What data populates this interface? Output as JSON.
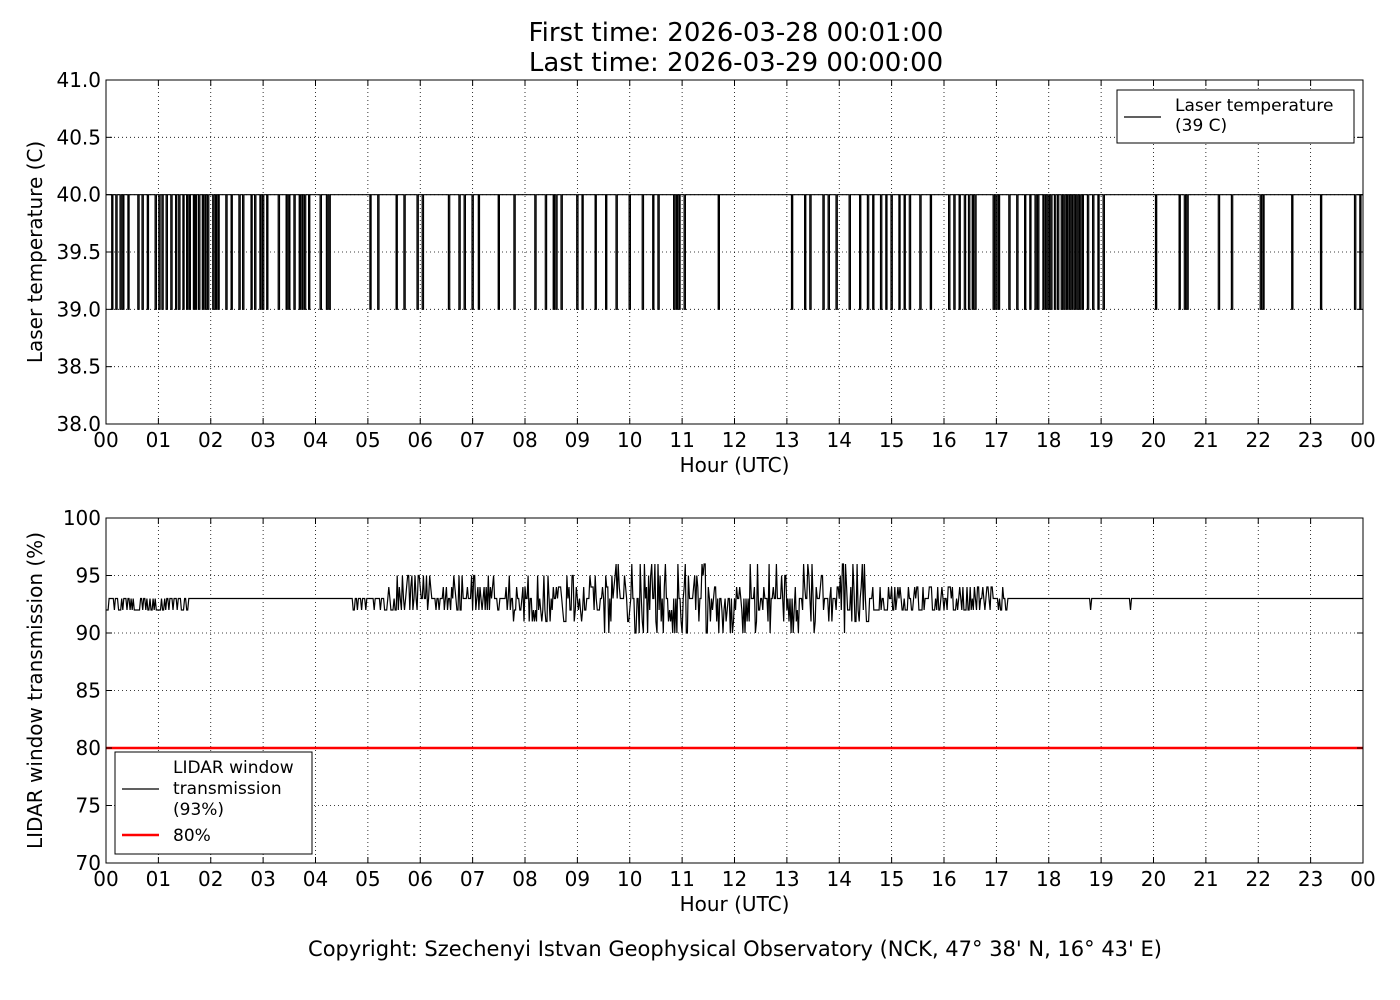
{
  "figure": {
    "title_line1": "First time: 2026-03-28 00:01:00",
    "title_line2": "Last time: 2026-03-29 00:00:00",
    "copyright": "Copyright: Szechenyi Istvan Geophysical Observatory (NCK, 47° 38' N, 16° 43' E)"
  },
  "chart_data": [
    {
      "type": "line",
      "xlabel": "Hour (UTC)",
      "ylabel": "Laser temperature (C)",
      "xlim": [
        0,
        24
      ],
      "ylim": [
        38.0,
        41.0
      ],
      "x_tick_labels": [
        "00",
        "01",
        "02",
        "03",
        "04",
        "05",
        "06",
        "07",
        "08",
        "09",
        "10",
        "11",
        "12",
        "13",
        "14",
        "15",
        "16",
        "17",
        "18",
        "19",
        "20",
        "21",
        "22",
        "23",
        "00"
      ],
      "y_tick_labels": [
        "38.0",
        "38.5",
        "39.0",
        "39.5",
        "40.0",
        "40.5",
        "41.0"
      ],
      "y_ticks": [
        38.0,
        38.5,
        39.0,
        39.5,
        40.0,
        40.5,
        41.0
      ],
      "grid": true,
      "legend_position": "top-right",
      "series": [
        {
          "name": "Laser temperature\n(39 C)",
          "color": "#000000",
          "baseline": 40.0,
          "dips_to": 39.0,
          "dip_hours": [
            0.12,
            0.2,
            0.28,
            0.33,
            0.43,
            0.62,
            0.7,
            0.8,
            0.95,
            1.02,
            1.08,
            1.16,
            1.25,
            1.34,
            1.4,
            1.48,
            1.55,
            1.6,
            1.68,
            1.72,
            1.78,
            1.85,
            1.9,
            1.95,
            2.05,
            2.1,
            2.15,
            2.3,
            2.4,
            2.55,
            2.62,
            2.78,
            2.85,
            2.95,
            3.0,
            3.08,
            3.3,
            3.45,
            3.5,
            3.6,
            3.7,
            3.75,
            3.8,
            3.88,
            4.1,
            4.22,
            4.27,
            5.05,
            5.2,
            5.55,
            5.7,
            5.95,
            6.05,
            6.55,
            6.75,
            6.85,
            7.0,
            7.12,
            7.5,
            7.8,
            8.2,
            8.4,
            8.55,
            8.6,
            8.7,
            9.0,
            9.1,
            9.35,
            9.55,
            9.75,
            10.0,
            10.25,
            10.45,
            10.55,
            10.85,
            10.9,
            10.95,
            11.05,
            11.7,
            13.1,
            13.35,
            13.45,
            13.7,
            13.8,
            13.95,
            14.2,
            14.4,
            14.55,
            14.65,
            14.8,
            14.9,
            15.0,
            15.15,
            15.25,
            15.35,
            15.55,
            15.75,
            16.1,
            16.2,
            16.3,
            16.4,
            16.48,
            16.55,
            16.6,
            16.95,
            17.0,
            17.05,
            17.25,
            17.4,
            17.55,
            17.65,
            17.75,
            17.8,
            17.9,
            17.95,
            18.0,
            18.05,
            18.12,
            18.18,
            18.25,
            18.3,
            18.35,
            18.4,
            18.45,
            18.5,
            18.55,
            18.6,
            18.65,
            18.75,
            18.85,
            18.95,
            19.05,
            20.05,
            20.5,
            20.6,
            20.65,
            21.25,
            21.5,
            22.05,
            22.1,
            22.65,
            23.2,
            23.85,
            23.95
          ]
        }
      ]
    },
    {
      "type": "line",
      "xlabel": "Hour (UTC)",
      "ylabel": "LIDAR window transmission (%)",
      "xlim": [
        0,
        24
      ],
      "ylim": [
        70,
        100
      ],
      "x_tick_labels": [
        "00",
        "01",
        "02",
        "03",
        "04",
        "05",
        "06",
        "07",
        "08",
        "09",
        "10",
        "11",
        "12",
        "13",
        "14",
        "15",
        "16",
        "17",
        "18",
        "19",
        "20",
        "21",
        "22",
        "23",
        "00"
      ],
      "y_tick_labels": [
        "70",
        "75",
        "80",
        "85",
        "90",
        "95",
        "100"
      ],
      "y_ticks": [
        70,
        75,
        80,
        85,
        90,
        95,
        100
      ],
      "grid": true,
      "legend_position": "bottom-left",
      "series": [
        {
          "name": "LIDAR window\ntransmission\n(93%)",
          "color": "#000000",
          "baseline": 93,
          "noisy_segments": [
            {
              "start": 0.0,
              "end": 1.6,
              "amplitude_low": 1,
              "amplitude_high": 0
            },
            {
              "start": 4.7,
              "end": 5.3,
              "amplitude_low": 1,
              "amplitude_high": 0
            },
            {
              "start": 5.3,
              "end": 7.7,
              "amplitude_low": 1,
              "amplitude_high": 2
            },
            {
              "start": 7.7,
              "end": 9.5,
              "amplitude_low": 2,
              "amplitude_high": 2
            },
            {
              "start": 9.5,
              "end": 14.6,
              "amplitude_low": 3,
              "amplitude_high": 3
            },
            {
              "start": 14.6,
              "end": 17.2,
              "amplitude_low": 1,
              "amplitude_high": 1
            }
          ],
          "isolated_dips": [
            [
              18.8,
              92
            ],
            [
              19.55,
              92
            ]
          ]
        },
        {
          "name": "80%",
          "color": "#ff0000",
          "values_constant": 80
        }
      ]
    }
  ]
}
